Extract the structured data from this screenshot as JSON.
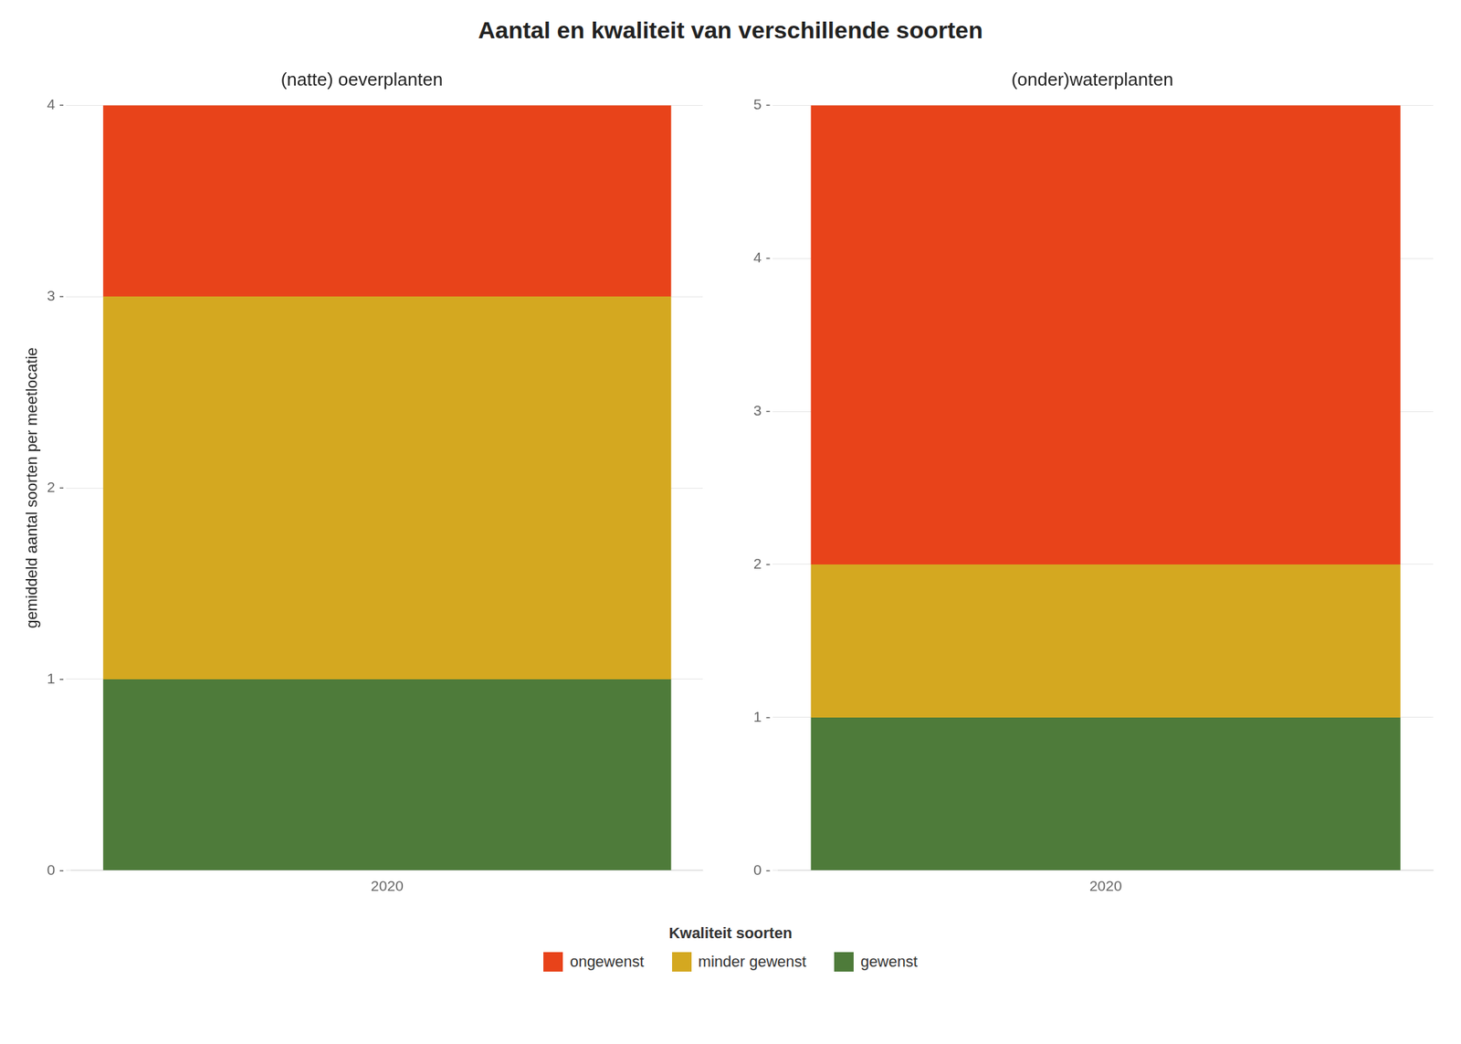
{
  "title": "Aantal en kwaliteit van verschillende soorten",
  "legend": "bottom",
  "legend_title": "Kwaliteit soorten",
  "chart_data": [
    {
      "type": "bar",
      "stacked": true,
      "grid": true,
      "subtitle": "(natte) oeverplanten",
      "ylabel": "gemiddeld aantal soorten per meetlocatie",
      "categories": [
        "2020"
      ],
      "series": [
        {
          "name": "gewenst",
          "color": "#4E7B3A",
          "values": [
            1
          ]
        },
        {
          "name": "minder gewenst",
          "color": "#D4A820",
          "values": [
            2
          ]
        },
        {
          "name": "ongewenst",
          "color": "#E8431A",
          "values": [
            1
          ]
        }
      ],
      "ylim": [
        0,
        4
      ],
      "yticks": [
        {
          "value": 0,
          "label": "0 -"
        },
        {
          "value": 1,
          "label": "1 -"
        },
        {
          "value": 2,
          "label": "2 -"
        },
        {
          "value": 3,
          "label": "3 -"
        },
        {
          "value": 4,
          "label": "4 -"
        }
      ]
    },
    {
      "type": "bar",
      "stacked": true,
      "grid": true,
      "subtitle": "(onder)waterplanten",
      "categories": [
        "2020"
      ],
      "series": [
        {
          "name": "gewenst",
          "color": "#4E7B3A",
          "values": [
            1
          ]
        },
        {
          "name": "minder gewenst",
          "color": "#D4A820",
          "values": [
            1
          ]
        },
        {
          "name": "ongewenst",
          "color": "#E8431A",
          "values": [
            3
          ]
        }
      ],
      "ylim": [
        0,
        5
      ],
      "yticks": [
        {
          "value": 0,
          "label": "0 -"
        },
        {
          "value": 1,
          "label": "1 -"
        },
        {
          "value": 2,
          "label": "2 -"
        },
        {
          "value": 3,
          "label": "3 -"
        },
        {
          "value": 4,
          "label": "4 -"
        },
        {
          "value": 5,
          "label": "5 -"
        }
      ]
    }
  ]
}
